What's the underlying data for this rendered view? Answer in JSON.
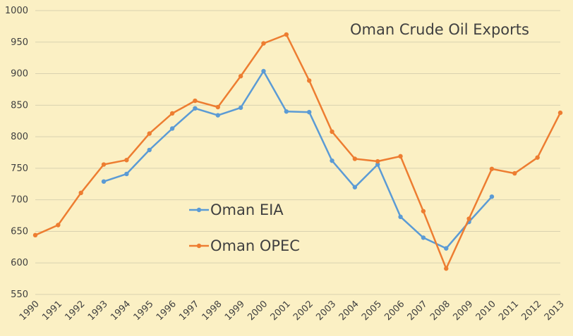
{
  "chart_data": {
    "type": "line",
    "title": "Oman Crude Oil Exports",
    "xlabel": "",
    "ylabel": "",
    "x": [
      1990,
      1991,
      1992,
      1993,
      1994,
      1995,
      1996,
      1997,
      1998,
      1999,
      2000,
      2001,
      2002,
      2003,
      2004,
      2005,
      2006,
      2007,
      2008,
      2009,
      2010,
      2011,
      2012,
      2013
    ],
    "x_tick_labels": [
      "1990",
      "1991",
      "1992",
      "1993",
      "1994",
      "1995",
      "1996",
      "1997",
      "1998",
      "1999",
      "2000",
      "2001",
      "2002",
      "2003",
      "2004",
      "2005",
      "2006",
      "2007",
      "2008",
      "2009",
      "2010",
      "2011",
      "2012",
      "2013"
    ],
    "ylim": [
      550,
      1000
    ],
    "y_ticks": [
      550,
      600,
      650,
      700,
      750,
      800,
      850,
      900,
      950,
      1000
    ],
    "y_tick_labels": [
      "550",
      "600",
      "650",
      "700",
      "750",
      "800",
      "850",
      "900",
      "950",
      "1000"
    ],
    "grid": true,
    "legend_placement": "center-left",
    "series": [
      {
        "name": "Oman EIA",
        "color": "#5b9bd5",
        "values": [
          null,
          null,
          null,
          729,
          741,
          779,
          813,
          845,
          834,
          846,
          904,
          840,
          839,
          762,
          720,
          756,
          673,
          640,
          623,
          665,
          705,
          null,
          null,
          null
        ]
      },
      {
        "name": "Oman OPEC",
        "color": "#ed7d31",
        "values": [
          644,
          660,
          711,
          756,
          763,
          805,
          837,
          857,
          847,
          896,
          948,
          962,
          889,
          808,
          765,
          761,
          769,
          682,
          591,
          670,
          749,
          742,
          767,
          838
        ]
      }
    ]
  }
}
